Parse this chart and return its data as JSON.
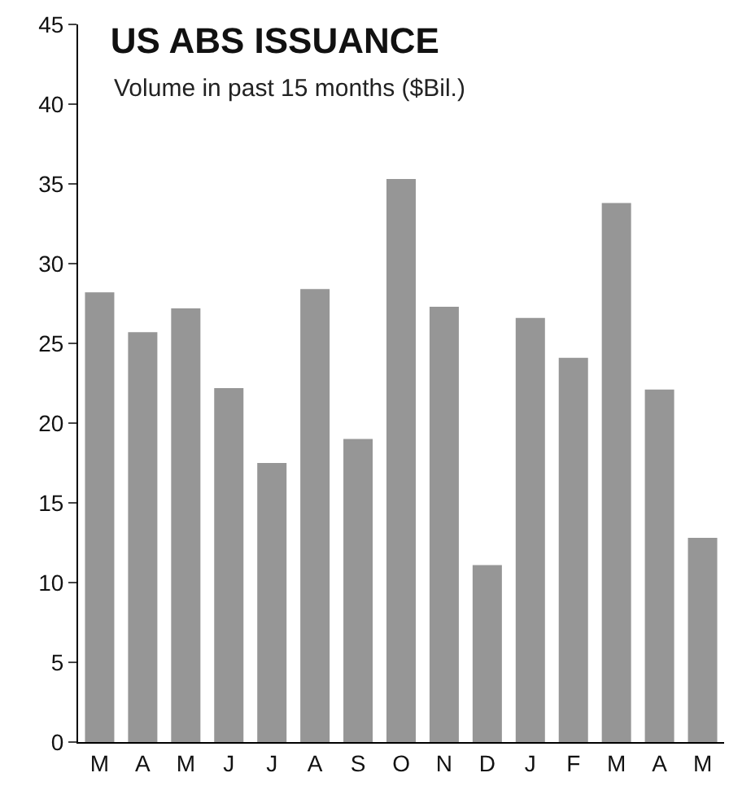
{
  "chart_data": {
    "type": "bar",
    "title": "US ABS ISSUANCE",
    "subtitle": "Volume in past 15 months ($Bil.)",
    "categories": [
      "M",
      "A",
      "M",
      "J",
      "J",
      "A",
      "S",
      "O",
      "N",
      "D",
      "J",
      "F",
      "M",
      "A",
      "M"
    ],
    "values": [
      28.2,
      25.7,
      27.2,
      22.2,
      17.5,
      28.4,
      19.0,
      35.3,
      27.3,
      11.1,
      26.6,
      24.1,
      33.8,
      22.1,
      12.8
    ],
    "color": "#969696",
    "ylim": [
      0,
      45
    ],
    "yticks": [
      0,
      5,
      10,
      15,
      20,
      25,
      30,
      35,
      40,
      45
    ],
    "grid": false
  }
}
